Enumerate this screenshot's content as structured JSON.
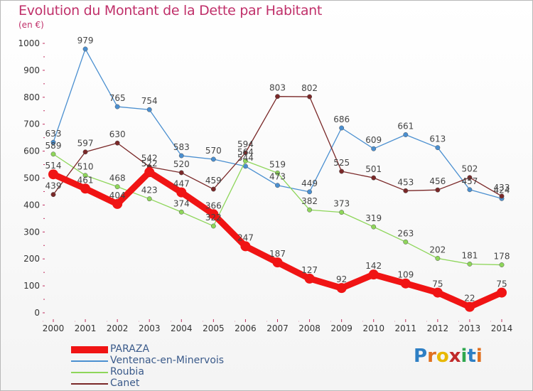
{
  "title": "Evolution du Montant de la Dette par Habitant",
  "subtitle": "(en €)",
  "logo": {
    "letters": [
      "P",
      "r",
      "o",
      "x",
      "i",
      "t",
      "i"
    ],
    "colors": [
      "#2e7fc4",
      "#e07020",
      "#e8b800",
      "#c02a2a",
      "#2fa84f",
      "#2e7fc4",
      "#e07020"
    ]
  },
  "chart_data": {
    "type": "line",
    "x": [
      "2000",
      "2001",
      "2002",
      "2003",
      "2004",
      "2005",
      "2006",
      "2007",
      "2008",
      "2009",
      "2010",
      "2011",
      "2012",
      "2013",
      "2014"
    ],
    "yticks": [
      "0",
      "100",
      "200",
      "300",
      "400",
      "500",
      "600",
      "700",
      "800",
      "900",
      "1000"
    ],
    "ylim": [
      0,
      1000
    ],
    "grid": false,
    "legend_position": "bottom-left",
    "series": [
      {
        "name": "Ventenac-en-Minervois",
        "color": "#4a8fd0",
        "thick": false,
        "values": [
          633,
          979,
          765,
          754,
          583,
          570,
          544,
          473,
          449,
          686,
          609,
          661,
          613,
          457,
          424
        ],
        "labels": [
          "633",
          "979",
          "765",
          "754",
          "583",
          "570",
          "544",
          "473",
          "449",
          "686",
          "609",
          "661",
          "613",
          "457",
          "424"
        ]
      },
      {
        "name": "Roubia",
        "color": "#8ed65a",
        "thick": false,
        "values": [
          589,
          510,
          468,
          423,
          374,
          322,
          564,
          519,
          382,
          373,
          319,
          263,
          202,
          181,
          178
        ],
        "labels": [
          "589",
          "510",
          "468",
          "423",
          "374",
          "322",
          "564",
          "519",
          "382",
          "373",
          "319",
          "263",
          "202",
          "181",
          "178"
        ]
      },
      {
        "name": "Canet",
        "color": "#7a2828",
        "thick": false,
        "values": [
          439,
          597,
          630,
          542,
          520,
          459,
          594,
          803,
          802,
          525,
          501,
          453,
          456,
          502,
          433
        ],
        "labels": [
          "439",
          "597",
          "630",
          "542",
          "520",
          "459",
          "594",
          "803",
          "802",
          "525",
          "501",
          "453",
          "456",
          "502",
          "433"
        ]
      },
      {
        "name": "PARAZA",
        "color": "#f01414",
        "thick": true,
        "values": [
          514,
          461,
          404,
          522,
          447,
          366,
          247,
          187,
          127,
          92,
          142,
          109,
          75,
          22,
          75
        ],
        "labels": [
          "514",
          "461",
          "404",
          "522",
          "447",
          "366",
          "247",
          "187",
          "127",
          "92",
          "142",
          "109",
          "75",
          "22",
          "75"
        ]
      }
    ],
    "legend_order": [
      "PARAZA",
      "Ventenac-en-Minervois",
      "Roubia",
      "Canet"
    ]
  }
}
